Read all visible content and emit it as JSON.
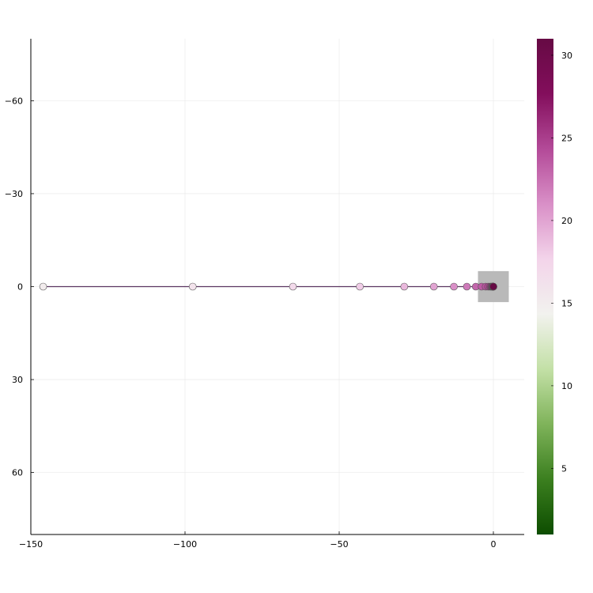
{
  "chart_data": {
    "type": "scatter",
    "title": "",
    "xlabel": "",
    "ylabel": "",
    "xlim": [
      -150,
      10
    ],
    "ylim": [
      80,
      -80
    ],
    "y_axis_inverted": true,
    "grid": true,
    "legend": "none",
    "x_ticks": [
      -150,
      -100,
      -50,
      0
    ],
    "x_tick_labels": [
      "−150",
      "−100",
      "−50",
      "0"
    ],
    "y_ticks": [
      -60,
      -30,
      0,
      30,
      60
    ],
    "y_tick_labels": [
      "−60",
      "−30",
      "0",
      "30",
      "60"
    ],
    "colorbar": {
      "range": [
        1,
        31
      ],
      "ticks": [
        5,
        10,
        15,
        20,
        25,
        30
      ],
      "tick_labels": [
        "5",
        "10",
        "15",
        "20",
        "25",
        "30"
      ],
      "colormap": [
        "#0d4d00",
        "#3b7f1f",
        "#7fb35a",
        "#c3e0a6",
        "#f2f2ee",
        "#f3d4ea",
        "#d98fc7",
        "#b34a98",
        "#830e5c",
        "#660a44"
      ]
    },
    "line_color": "#5b3561",
    "inset_region": {
      "x": [
        -5,
        5
      ],
      "y": [
        -5,
        5
      ],
      "color": "#b9b9b9"
    },
    "points": {
      "x": [
        -146.0,
        -97.5,
        -65.0,
        -43.3,
        -28.9,
        -19.3,
        -12.8,
        -8.6,
        -5.7,
        -3.8,
        -2.5,
        -1.7,
        -1.1,
        -0.75,
        -0.5,
        -0.33,
        -0.22,
        -0.15,
        -0.1,
        -0.07,
        -0.04,
        -0.03,
        -0.02,
        -0.01,
        0.0
      ],
      "y": [
        0,
        0,
        0,
        0,
        0,
        0,
        0,
        0,
        0,
        0,
        0,
        0,
        0,
        0,
        0,
        0,
        0,
        0,
        0,
        0,
        0,
        0,
        0,
        0,
        0
      ],
      "c": [
        15,
        16,
        17,
        18,
        19,
        20,
        21,
        22,
        23,
        23.5,
        24,
        24.5,
        25,
        25.5,
        26,
        26.5,
        27,
        27.5,
        28,
        28.5,
        29,
        29.5,
        30,
        30.5,
        31
      ]
    }
  }
}
